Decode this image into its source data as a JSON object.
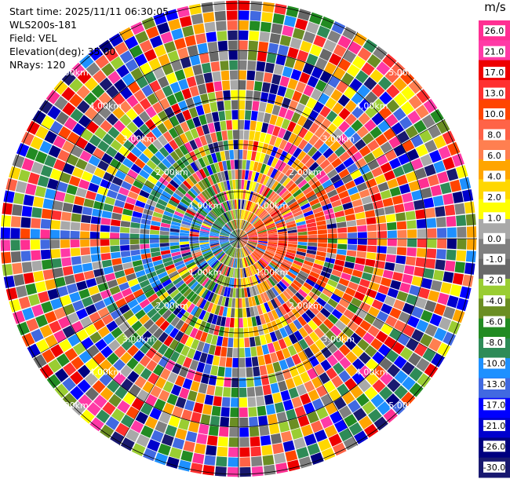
{
  "info": {
    "start_time": "Start time: 2025/11/11 06:30:05",
    "instrument": "WLS200s-181",
    "field": "Field: VEL",
    "elevation": "Elevation(deg): 35.00",
    "nrays": "NRays: 120"
  },
  "chart_data": {
    "type": "heatmap",
    "projection": "polar (PPI scan)",
    "title": "",
    "rays": 120,
    "range_rings_km": [
      "1.00km",
      "2.00km",
      "3.00km",
      "4.00km",
      "5.00km"
    ],
    "colorbar": {
      "unit": "m/s",
      "ticks": [
        "26.0",
        "21.0",
        "17.0",
        "13.0",
        "10.0",
        "8.0",
        "6.0",
        "4.0",
        "2.0",
        "1.0",
        "0.0",
        "-1.0",
        "-2.0",
        "-4.0",
        "-6.0",
        "-8.0",
        "-10.0",
        "-13.0",
        "-17.0",
        "-21.0",
        "-26.0",
        "-30.0"
      ],
      "colors": [
        "#ff2f92",
        "#ff3aa6",
        "#ee0000",
        "#ff3030",
        "#ff4500",
        "#ff6347",
        "#ff7f50",
        "#ffa500",
        "#ffd700",
        "#ffff00",
        "#a9a9a9",
        "#808080",
        "#696969",
        "#9acd32",
        "#6b8e23",
        "#228b22",
        "#2e8b57",
        "#1e90ff",
        "#4169e1",
        "#0000ff",
        "#0000cd",
        "#000080",
        "#191970"
      ]
    }
  }
}
